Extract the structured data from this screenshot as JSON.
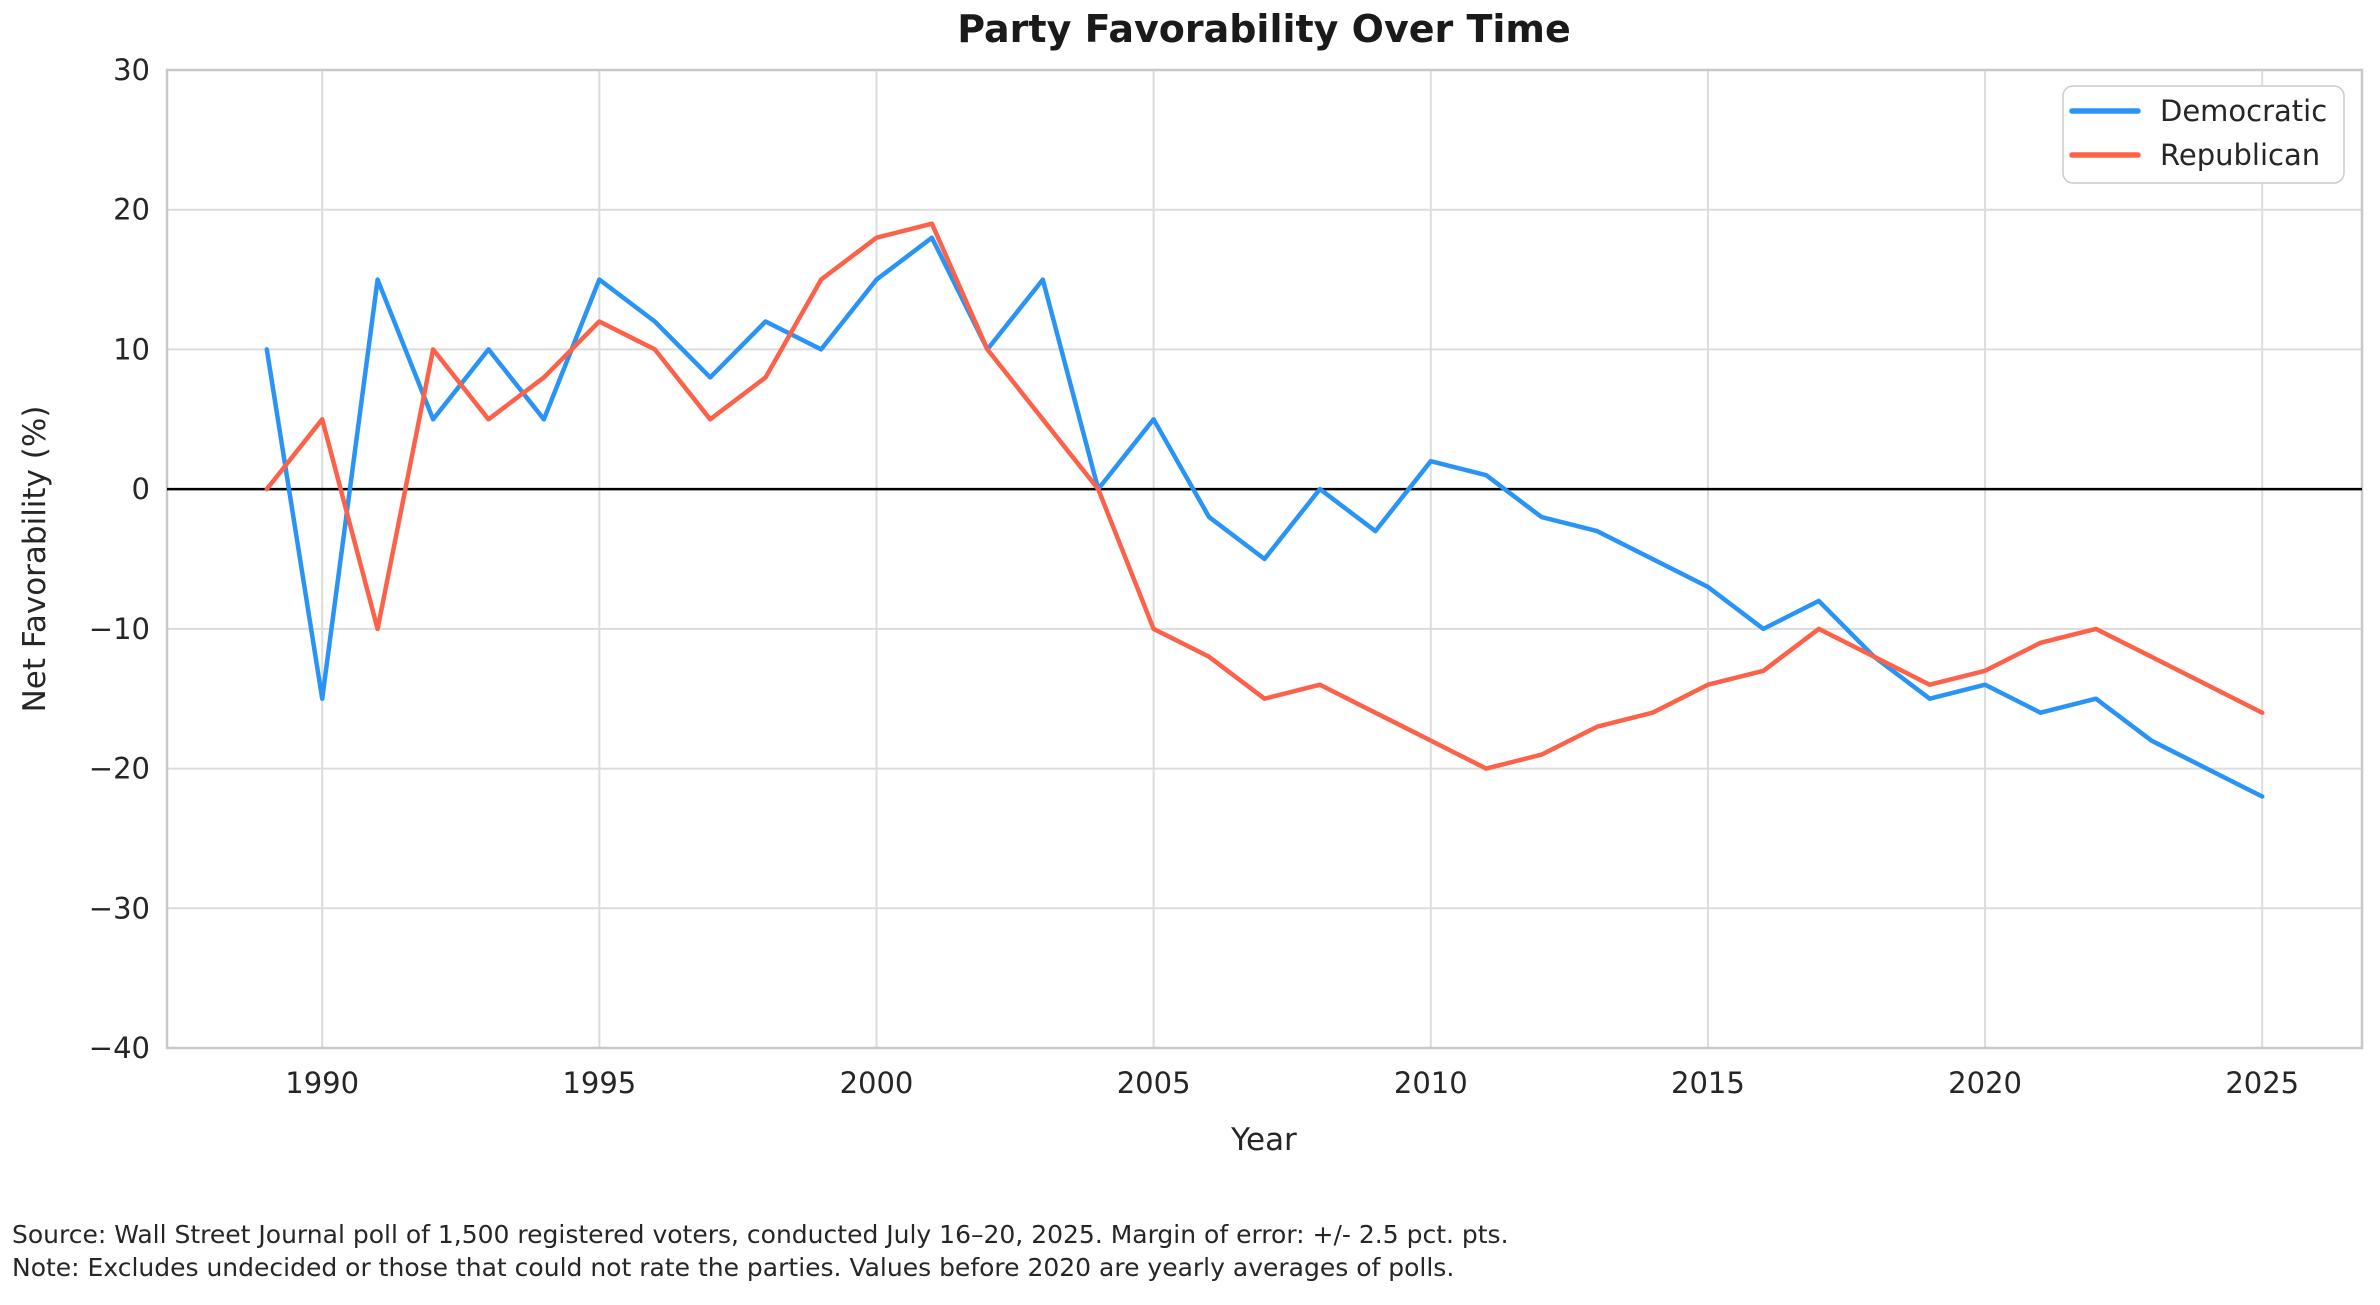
{
  "title": "Party Favorability Over Time",
  "footer": {
    "source_line": "Source: Wall Street Journal poll of 1,500 registered voters, conducted July 16–20, 2025. Margin of error: +/- 2.5 pct. pts.",
    "note_line": "Note: Excludes undecided or those that could not rate the parties. Values before 2020 are yearly averages of polls."
  },
  "colors": {
    "democratic": "#2994F6",
    "republican": "#FC6149",
    "grid": "#DCDCDC",
    "spine": "#C8C8C8",
    "zero_line": "#000000",
    "background": "#FFFFFF",
    "legend_border": "#CCCCCC",
    "text": "#262626"
  },
  "chart_data": {
    "type": "line",
    "title": "Party Favorability Over Time",
    "xlabel": "Year",
    "ylabel": "Net Favorability (%)",
    "x": [
      1989,
      1990,
      1991,
      1992,
      1993,
      1994,
      1995,
      1996,
      1997,
      1998,
      1999,
      2000,
      2001,
      2002,
      2003,
      2004,
      2005,
      2006,
      2007,
      2008,
      2009,
      2010,
      2011,
      2012,
      2013,
      2014,
      2015,
      2016,
      2017,
      2018,
      2019,
      2020,
      2021,
      2022,
      2023,
      2024,
      2025
    ],
    "series": [
      {
        "name": "Democratic",
        "color": "#2994F6",
        "values": [
          10,
          -15,
          15,
          5,
          10,
          5,
          15,
          12,
          8,
          12,
          10,
          15,
          18,
          10,
          15,
          0,
          5,
          -2,
          -5,
          0,
          -3,
          2,
          1,
          -2,
          -3,
          -5,
          -7,
          -10,
          -8,
          -12,
          -15,
          -14,
          -16,
          -15,
          -18,
          -20,
          -22
        ]
      },
      {
        "name": "Republican",
        "color": "#FC6149",
        "values": [
          0,
          5,
          -10,
          10,
          5,
          8,
          12,
          10,
          5,
          8,
          15,
          18,
          19,
          10,
          5,
          0,
          -10,
          -12,
          -15,
          -14,
          -16,
          -18,
          -20,
          -19,
          -17,
          -16,
          -14,
          -13,
          -10,
          -12,
          -14,
          -13,
          -11,
          -10,
          -12,
          -14,
          -16
        ]
      }
    ],
    "xlim": [
      1987.2,
      2026.8
    ],
    "ylim": [
      -40,
      30
    ],
    "xticks": [
      1990,
      1995,
      2000,
      2005,
      2010,
      2015,
      2020,
      2025
    ],
    "yticks": [
      -40,
      -30,
      -20,
      -10,
      0,
      10,
      20,
      30
    ],
    "grid": true,
    "zero_line": true,
    "legend_position": "upper right"
  }
}
